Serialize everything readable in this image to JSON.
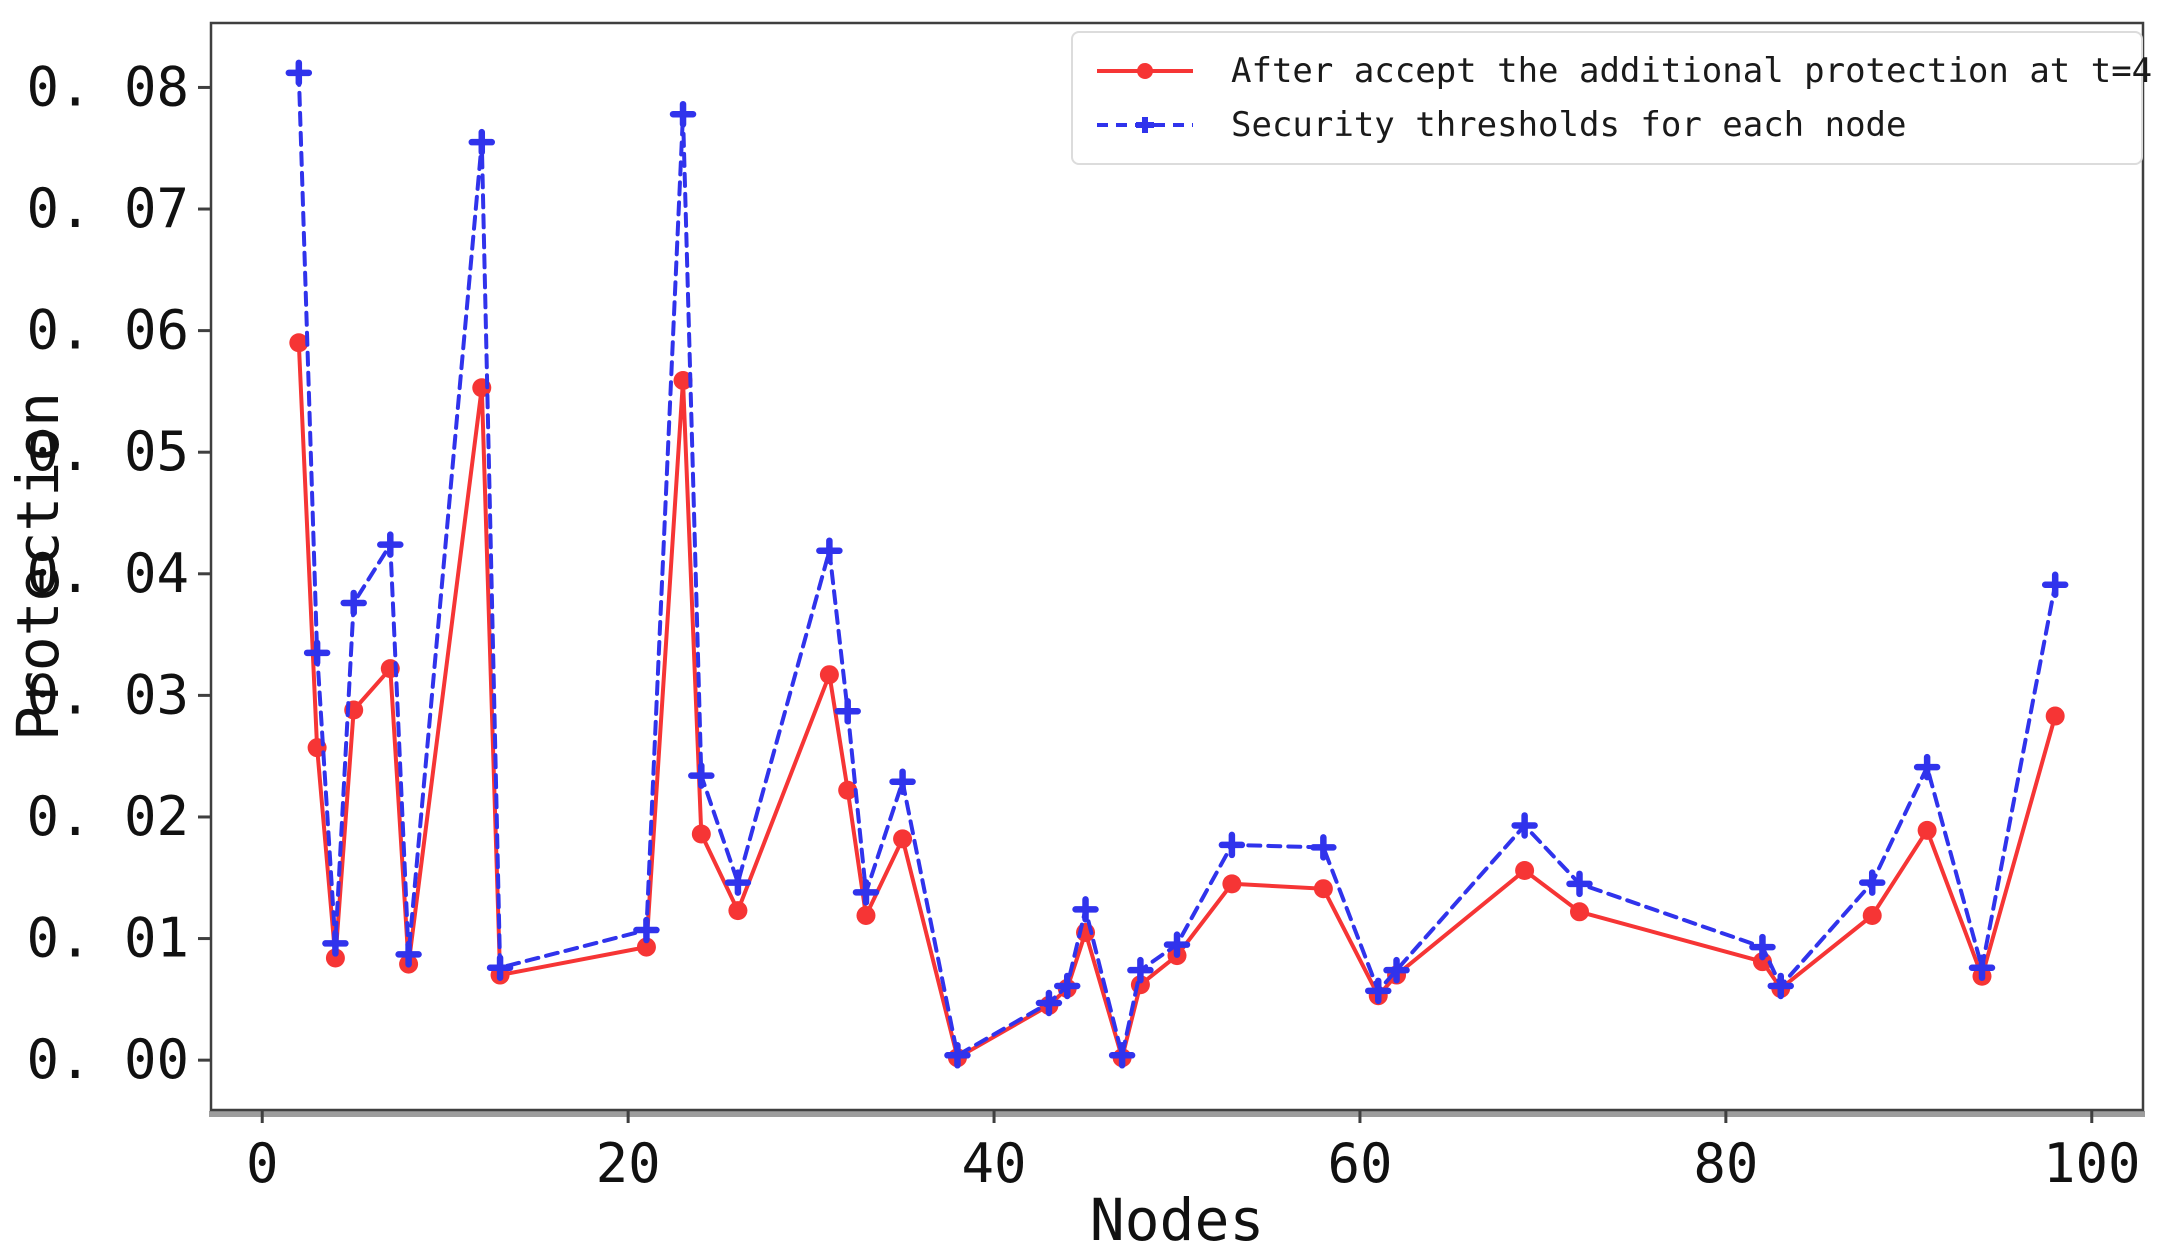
{
  "chart_data": {
    "type": "line",
    "title": "",
    "xlabel": "Nodes",
    "ylabel": "Protection",
    "grid": false,
    "legend_position": "upper right",
    "xlim": [
      -2.8,
      102.8
    ],
    "ylim": [
      -0.0041,
      0.0853
    ],
    "x_ticks": {
      "values": [
        0,
        20,
        40,
        60,
        80,
        100
      ],
      "labels": [
        "0",
        "20",
        "40",
        "60",
        "80",
        "100"
      ]
    },
    "y_ticks": {
      "values": [
        0.0,
        0.01,
        0.02,
        0.03,
        0.04,
        0.05,
        0.06,
        0.07,
        0.08
      ],
      "labels": [
        "0. 00",
        "0. 01",
        "0. 02",
        "0. 03",
        "0. 04",
        "0. 05",
        "0. 06",
        "0. 07",
        "0. 08"
      ]
    },
    "x": [
      2,
      3,
      4,
      5,
      7,
      8,
      12,
      13,
      21,
      23,
      24,
      26,
      31,
      32,
      33,
      35,
      38,
      43,
      44,
      45,
      47,
      48,
      50,
      53,
      58,
      61,
      62,
      69,
      72,
      82,
      83,
      88,
      91,
      94,
      98
    ],
    "series": [
      {
        "name": "After accept the additional protection at t=4",
        "color": "#f63535",
        "line_style": "solid",
        "marker": "circle",
        "values": [
          0.059,
          0.0257,
          0.0084,
          0.0288,
          0.0322,
          0.0079,
          0.0553,
          0.007,
          0.0093,
          0.0559,
          0.0186,
          0.0123,
          0.0317,
          0.0222,
          0.0119,
          0.0182,
          0.0002,
          0.0045,
          0.0059,
          0.0105,
          0.0002,
          0.0062,
          0.0086,
          0.0145,
          0.0141,
          0.0053,
          0.007,
          0.0156,
          0.0122,
          0.0081,
          0.0059,
          0.0119,
          0.0189,
          0.0069,
          0.0283
        ]
      },
      {
        "name": "Security thresholds for each node",
        "color": "#3033ec",
        "line_style": "dashed",
        "marker": "plus",
        "values": [
          0.0812,
          0.0335,
          0.0096,
          0.0376,
          0.0424,
          0.0087,
          0.0755,
          0.0076,
          0.0107,
          0.0778,
          0.0234,
          0.0146,
          0.0419,
          0.0287,
          0.0138,
          0.0229,
          0.0004,
          0.0047,
          0.0061,
          0.0124,
          0.0004,
          0.0074,
          0.0095,
          0.0177,
          0.0175,
          0.0057,
          0.0074,
          0.0193,
          0.0145,
          0.0093,
          0.0061,
          0.0146,
          0.0241,
          0.0076,
          0.0391
        ]
      }
    ],
    "axis_colors": {
      "spine": "#3f3f3f",
      "bottom_band": "#9d9d9d",
      "tick": "#3f3f3f",
      "label": "#111111"
    }
  },
  "legend": {
    "entries": [
      {
        "label": "After accept the additional protection at t=4"
      },
      {
        "label": "Security thresholds for each node"
      }
    ]
  }
}
